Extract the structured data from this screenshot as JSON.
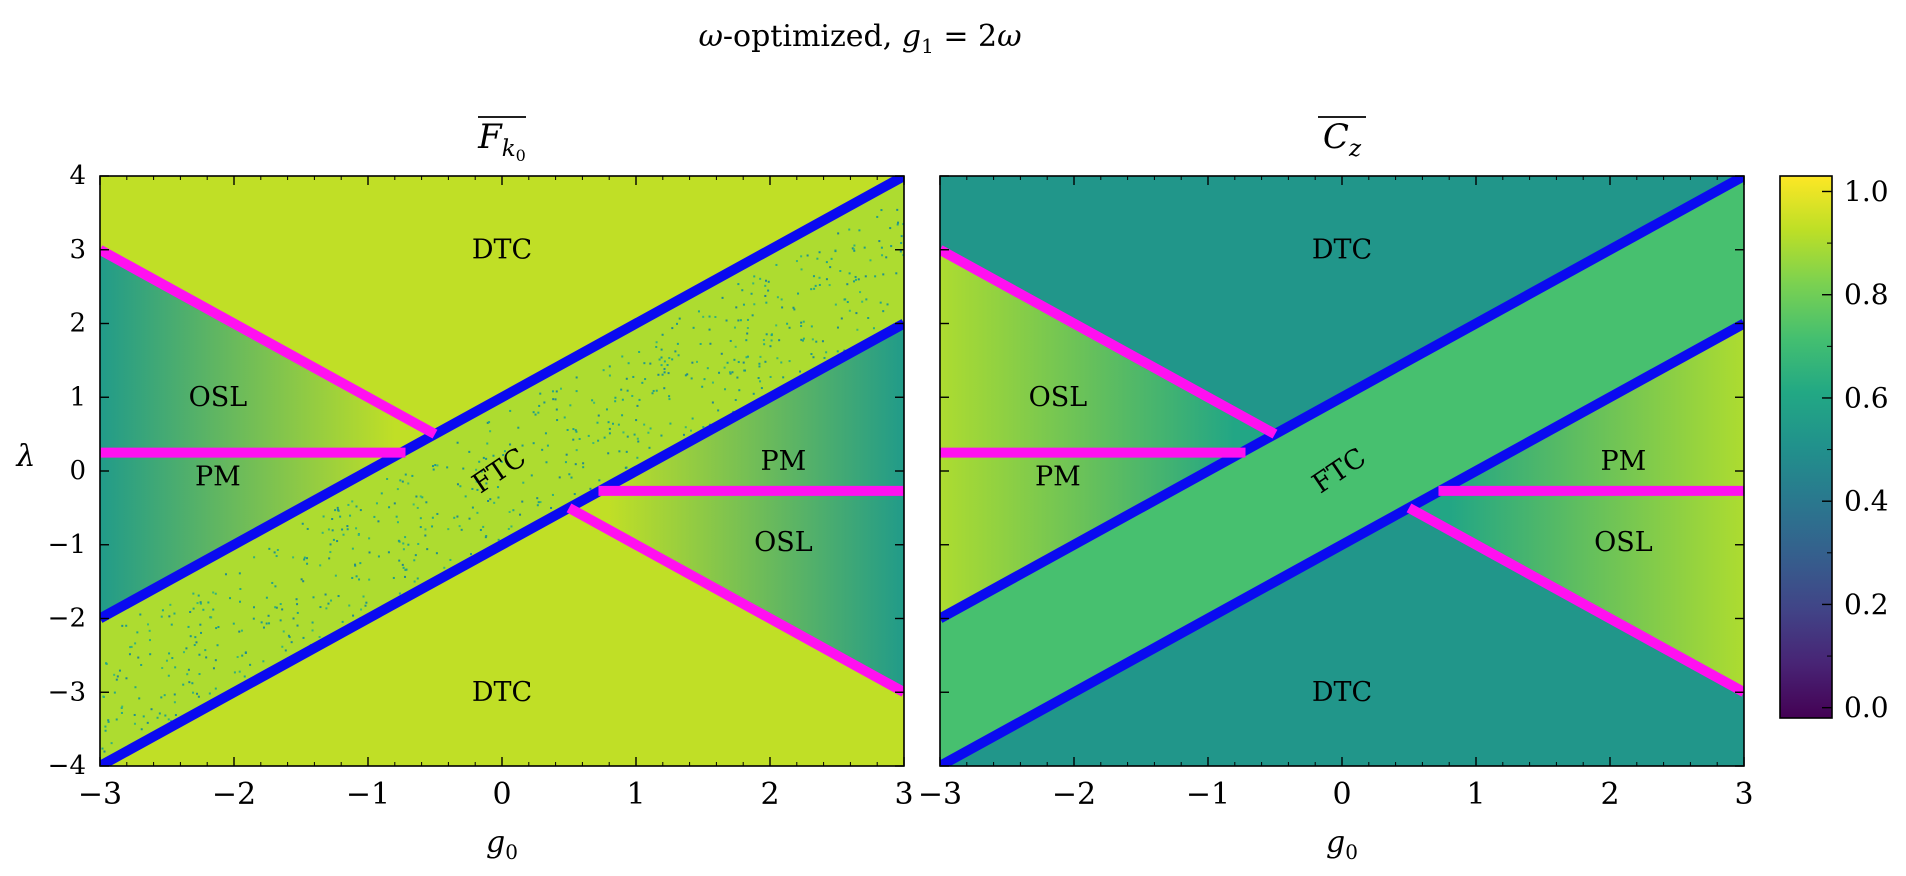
{
  "figure": {
    "suptitle_parts": [
      "ω",
      "-optimized,  ",
      "g",
      "1",
      " = 2",
      "ω"
    ]
  },
  "colors": {
    "critical_line": "#0a0af0",
    "boundary_line": "#ff10f0",
    "viridis": [
      "#440154",
      "#482475",
      "#414487",
      "#355f8d",
      "#2a788e",
      "#21918c",
      "#22a884",
      "#44bf70",
      "#7ad151",
      "#bddf26",
      "#fde725"
    ]
  },
  "colorbar": {
    "min": -0.02,
    "max": 1.03,
    "ticks": [
      0.0,
      0.2,
      0.4,
      0.6,
      0.8,
      1.0
    ],
    "tick_labels": [
      "0.0",
      "0.2",
      "0.4",
      "0.6",
      "0.8",
      "1.0"
    ]
  },
  "chart_data": [
    {
      "type": "heatmap",
      "title_parts": [
        "F",
        "k",
        "0"
      ],
      "title_overline": true,
      "xlabel_parts": [
        "g",
        "0"
      ],
      "ylabel": "λ",
      "xlim": [
        -3,
        3
      ],
      "ylim": [
        -4,
        4
      ],
      "xticks": [
        -3,
        -2,
        -1,
        0,
        1,
        2,
        3
      ],
      "xtick_labels": [
        "−3",
        "−2",
        "−1",
        "0",
        "1",
        "2",
        "3"
      ],
      "yticks": [
        -4,
        -3,
        -2,
        -1,
        0,
        1,
        2,
        3,
        4
      ],
      "ytick_labels": [
        "−4",
        "−3",
        "−2",
        "−1",
        "0",
        "1",
        "2",
        "3",
        "4"
      ],
      "field_values": {
        "background": 0.93,
        "osl_pm_edge": 0.93,
        "osl_pm_far": 0.55,
        "ftc_band": 0.9,
        "noise_dots": 0.7
      },
      "lines": [
        {
          "name": "",
          "color_key": "critical_line",
          "x": [
            -3,
            3
          ],
          "y": [
            -2,
            4
          ]
        },
        {
          "name": "",
          "color_key": "critical_line",
          "x": [
            -3,
            3
          ],
          "y": [
            -4,
            2
          ]
        },
        {
          "name": "",
          "color_key": "boundary_line",
          "x": [
            -3,
            -0.5
          ],
          "y": [
            3,
            0.5
          ]
        },
        {
          "name": "",
          "color_key": "boundary_line",
          "x": [
            -3,
            -0.72
          ],
          "y": [
            0.25,
            0.25
          ]
        },
        {
          "name": "",
          "color_key": "boundary_line",
          "x": [
            0.5,
            3
          ],
          "y": [
            -0.5,
            -3
          ]
        },
        {
          "name": "",
          "color_key": "boundary_line",
          "x": [
            0.72,
            3
          ],
          "y": [
            -0.27,
            -0.27
          ]
        }
      ],
      "annotations": [
        {
          "text": "DTC",
          "x": 0,
          "y": 3.0,
          "rotate": 0
        },
        {
          "text": "DTC",
          "x": 0,
          "y": -3.0,
          "rotate": 0
        },
        {
          "text": "OSL",
          "x": -2.12,
          "y": 1.0,
          "rotate": 0
        },
        {
          "text": "PM",
          "x": -2.12,
          "y": -0.08,
          "rotate": 0
        },
        {
          "text": "PM",
          "x": 2.1,
          "y": 0.13,
          "rotate": 0
        },
        {
          "text": "OSL",
          "x": 2.1,
          "y": -0.97,
          "rotate": 0
        },
        {
          "text": "FTC",
          "x": -0.02,
          "y": 0.0,
          "rotate": -34
        }
      ]
    },
    {
      "type": "heatmap",
      "title_parts": [
        "C",
        "z"
      ],
      "title_overline": true,
      "xlabel_parts": [
        "g",
        "0"
      ],
      "ylabel": "",
      "xlim": [
        -3,
        3
      ],
      "ylim": [
        -4,
        4
      ],
      "xticks": [
        -3,
        -2,
        -1,
        0,
        1,
        2,
        3
      ],
      "xtick_labels": [
        "−3",
        "−2",
        "−1",
        "0",
        "1",
        "2",
        "3"
      ],
      "yticks": [
        -4,
        -3,
        -2,
        -1,
        0,
        1,
        2,
        3,
        4
      ],
      "ytick_labels": [],
      "field_values": {
        "background": 0.53,
        "osl_pm_edge": 0.6,
        "osl_pm_far": 0.9,
        "ftc_band": 0.72
      },
      "lines": [
        {
          "name": "",
          "color_key": "critical_line",
          "x": [
            -3,
            3
          ],
          "y": [
            -2,
            4
          ]
        },
        {
          "name": "",
          "color_key": "critical_line",
          "x": [
            -3,
            3
          ],
          "y": [
            -4,
            2
          ]
        },
        {
          "name": "",
          "color_key": "boundary_line",
          "x": [
            -3,
            -0.5
          ],
          "y": [
            3,
            0.5
          ]
        },
        {
          "name": "",
          "color_key": "boundary_line",
          "x": [
            -3,
            -0.72
          ],
          "y": [
            0.25,
            0.25
          ]
        },
        {
          "name": "",
          "color_key": "boundary_line",
          "x": [
            0.5,
            3
          ],
          "y": [
            -0.5,
            -3
          ]
        },
        {
          "name": "",
          "color_key": "boundary_line",
          "x": [
            0.72,
            3
          ],
          "y": [
            -0.27,
            -0.27
          ]
        }
      ],
      "annotations": [
        {
          "text": "DTC",
          "x": 0,
          "y": 3.0,
          "rotate": 0
        },
        {
          "text": "DTC",
          "x": 0,
          "y": -3.0,
          "rotate": 0
        },
        {
          "text": "OSL",
          "x": -2.12,
          "y": 1.0,
          "rotate": 0
        },
        {
          "text": "PM",
          "x": -2.12,
          "y": -0.08,
          "rotate": 0
        },
        {
          "text": "PM",
          "x": 2.1,
          "y": 0.13,
          "rotate": 0
        },
        {
          "text": "OSL",
          "x": 2.1,
          "y": -0.97,
          "rotate": 0
        },
        {
          "text": "FTC",
          "x": -0.02,
          "y": 0.0,
          "rotate": -34
        }
      ]
    }
  ]
}
